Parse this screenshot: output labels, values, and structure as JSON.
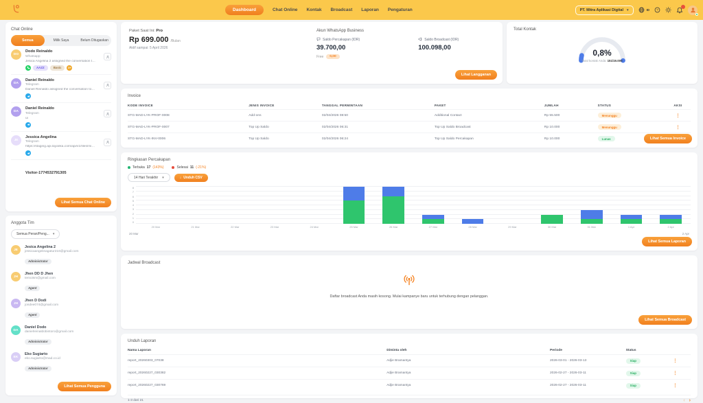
{
  "colors": {
    "accent": "#F58220",
    "topbar": "#FBC84B",
    "bar_green": "#2FC56D",
    "bar_blue": "#4E7CE8",
    "status_orange": "#F58220",
    "status_green": "#27AE60"
  },
  "topbar": {
    "nav": [
      {
        "label": "Dashboard"
      },
      {
        "label": "Chat Online"
      },
      {
        "label": "Kontak"
      },
      {
        "label": "Broadcast"
      },
      {
        "label": "Laporan"
      },
      {
        "label": "Pengaturan"
      }
    ],
    "company": "PT. Mitra Aplikasi Digital",
    "lang": "ID"
  },
  "chat_online": {
    "title": "Chat Online",
    "tabs": [
      "Semua",
      "Milik Saya",
      "Belum Ditugaskan"
    ],
    "items": [
      {
        "initials": "DO",
        "color": "#F8CC72",
        "name": "Dodo Reinaldo",
        "channel": "Whatsapp",
        "message": "Jesica Angelina 2 assigned the conversation to Je...",
        "tags": [
          "AAZZ",
          "Basic"
        ],
        "more": "3+"
      },
      {
        "initials": "DA",
        "color": "#B2A0EE",
        "name": "Daniel Reinaldo",
        "channel": "Telegram",
        "message": "Daniel Reinaldo assigned the conversation to them..."
      },
      {
        "initials": "DA",
        "color": "#B2A0EE",
        "name": "Daniel Reinaldo",
        "channel": "Telegram",
        "message": "ui"
      },
      {
        "initials": "JE",
        "color": "#E6DDFA",
        "name": "Jessica Angelina",
        "channel": "Telegram",
        "message": "https://staging.api.layanka.com/api/v1/files/minio?r..."
      },
      {
        "name": "Visitor-1774532791305"
      }
    ],
    "view_all": "Lihat Semua Chat Online"
  },
  "team": {
    "title": "Anggota Tim",
    "filter": "Semua Peran/Peng...",
    "members": [
      {
        "initials": "JE",
        "color": "#F8CC72",
        "name": "Jesica Angelina 2",
        "email": "jessicaangelinagatur216@gmail.com",
        "role": "Administrator"
      },
      {
        "initials": "JH",
        "color": "#F8CC72",
        "name": "Jhen DD D Jhen",
        "email": "temoism@gmail.com",
        "role": "Agent"
      },
      {
        "initials": "JH",
        "color": "#C9B8F2",
        "name": "Jhen D Dodi",
        "email": "jondee074@gmail.com",
        "role": "Agent"
      },
      {
        "initials": "DA",
        "color": "#63E0C8",
        "name": "Daniel Dodo",
        "email": "danielreinaldobintoro@gmail.com",
        "role": "Administrator"
      },
      {
        "initials": "EK",
        "color": "#D9CEF6",
        "name": "Eko Sugiarto",
        "email": "eko.sugiarto@mad.co.id",
        "role": "Administrator"
      }
    ],
    "view_all": "Lihat Semua Pengguna"
  },
  "plan": {
    "label": "Paket Saat Ini:",
    "name": "Pro",
    "price": "Rp 699.000",
    "per": "/Bulan",
    "active_until": "Aktif sampai: 5 April 2026"
  },
  "wa_account": {
    "title": "Akun WhatsApp Business",
    "saldo_percakapan_label": "Saldo Percakapan (IDR)",
    "saldo_percakapan": "39.700,00",
    "free_label": "Free",
    "free_value": "0,00",
    "saldo_broadcast_label": "Saldo Broadcast (IDR)",
    "saldo_broadcast": "100.098,00",
    "view_subscription": "Lihat Langganan"
  },
  "kontak": {
    "title": "Total Kontak",
    "percent": "0,8%",
    "gauge_value": 0.8,
    "caption": "Total kontak Anda: ",
    "count": "151/19.000"
  },
  "invoice": {
    "title": "Invoice",
    "headers": [
      "KODE INVOICE",
      "JENIS INVOICE",
      "TANGGAL PERMINTAAN",
      "PAKET",
      "JUMLAH",
      "STATUS",
      "AKSI"
    ],
    "rows": [
      {
        "kode": "STG-MAD-LYK-PROF-0008",
        "jenis": "Add-ons",
        "tanggal": "02/04/2026 08:50",
        "paket": "Additional Contact",
        "jumlah": "Rp 55.500",
        "status": "Menunggu"
      },
      {
        "kode": "STG-MAD-LYK-PROF-0007",
        "jenis": "Top Up Saldo",
        "tanggal": "02/04/2026 06:31",
        "paket": "Top Up Saldo Broadcast",
        "jumlah": "Rp 10.000",
        "status": "Menunggu"
      },
      {
        "kode": "STG-MAD-LYK-INV-0006",
        "jenis": "Top Up Saldo",
        "tanggal": "02/04/2026 06:24",
        "paket": "Top Up Saldo Percakapan",
        "jumlah": "Rp 10.000",
        "status": "Lunas"
      }
    ],
    "view_all": "Lihat Semua Invoice"
  },
  "conversation_summary": {
    "title": "Ringkasan Percakapan",
    "period_filter": "14 Hari Terakhir",
    "csv_button": "Unduh CSV",
    "view_all": "Lihat Semua Laporan"
  },
  "chart_data": {
    "type": "bar",
    "stacked": true,
    "title": "Ringkasan Percakapan",
    "categories": [
      "20 Mar",
      "21 Mar",
      "22 Mar",
      "23 Mar",
      "24 Mar",
      "25 Mar",
      "26 Mar",
      "27 Mar",
      "28 Mar",
      "29 Mar",
      "30 Mar",
      "31 Mar",
      "1 Apr",
      "2 Apr"
    ],
    "series": [
      {
        "name": "Terbuka",
        "total": "17",
        "change": "(143%)",
        "color": "#2FC56D",
        "dot_color": "#22B573",
        "values": [
          0,
          0,
          0,
          0,
          0,
          5,
          6,
          1,
          0,
          0,
          2,
          1,
          1,
          1
        ]
      },
      {
        "name": "Selesai",
        "total": "11",
        "change": "(-21%)",
        "color": "#4E7CE8",
        "dot_color": "#E74C3C",
        "values": [
          0,
          0,
          0,
          0,
          0,
          3,
          2,
          1,
          1,
          0,
          0,
          2,
          1,
          1
        ]
      }
    ],
    "ylim": [
      0,
      8
    ],
    "grid": true,
    "legend_position": "top",
    "range_start": "20 Mar",
    "range_end": "2 Apr"
  },
  "broadcast": {
    "title": "Jadwal Broadcast",
    "empty_text": "Daftar broadcast Anda masih kosong. Mulai kampanye baru untuk terhubung dengan pelanggan.",
    "view_all": "Lihat Semua Broadcast"
  },
  "reports": {
    "title": "Unduh Laporan",
    "headers": [
      "Nama Laporan",
      "Diminta oleh",
      "Periode",
      "Status"
    ],
    "rows": [
      {
        "nama": "report_20260303_07038",
        "oleh": "Adjie Bramantya",
        "periode": "2026-03-01 - 2026-03-13",
        "status": "Siap"
      },
      {
        "nama": "report_20260227_030382",
        "oleh": "Adjie Bramantya",
        "periode": "2026-02-27 - 2026-03-11",
        "status": "Siap"
      },
      {
        "nama": "report_20260227_030769",
        "oleh": "Adjie Bramantya",
        "periode": "2026-02-27 - 2026-03-11",
        "status": "Siap"
      }
    ],
    "footer": "1-3 dari 21"
  }
}
